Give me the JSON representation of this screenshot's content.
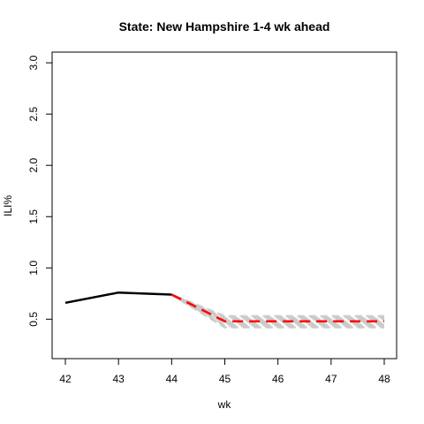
{
  "chart_data": {
    "type": "line",
    "title": "State: New Hampshire 1-4 wk ahead",
    "xlabel": "wk",
    "ylabel": "ILI%",
    "xlim": [
      42,
      48
    ],
    "ylim": [
      0.0,
      3.0
    ],
    "x_ticks": [
      42,
      43,
      44,
      45,
      46,
      47,
      48
    ],
    "y_ticks": [
      0.5,
      1.0,
      1.5,
      2.0,
      2.5,
      3.0
    ],
    "y_tick_labels": [
      "0.5",
      "1.0",
      "1.5",
      "2.0",
      "2.5",
      "3.0"
    ],
    "grid": false,
    "legend": "none",
    "series": [
      {
        "style": "solid",
        "color": "#000000",
        "x": [
          42,
          43,
          44
        ],
        "y": [
          0.66,
          0.76,
          0.74
        ]
      },
      {
        "style": "dashed",
        "color": "#ff0000",
        "x": [
          44,
          45,
          46,
          47,
          48
        ],
        "y": [
          0.74,
          0.48,
          0.48,
          0.48,
          0.48
        ]
      }
    ],
    "forecast_band": {
      "color": "#c8c8c8",
      "x": [
        44,
        45,
        46,
        47,
        48
      ],
      "lower": [
        0.74,
        0.42,
        0.42,
        0.42,
        0.42
      ],
      "upper": [
        0.74,
        0.53,
        0.53,
        0.53,
        0.53
      ],
      "sample_paths": 12
    }
  }
}
